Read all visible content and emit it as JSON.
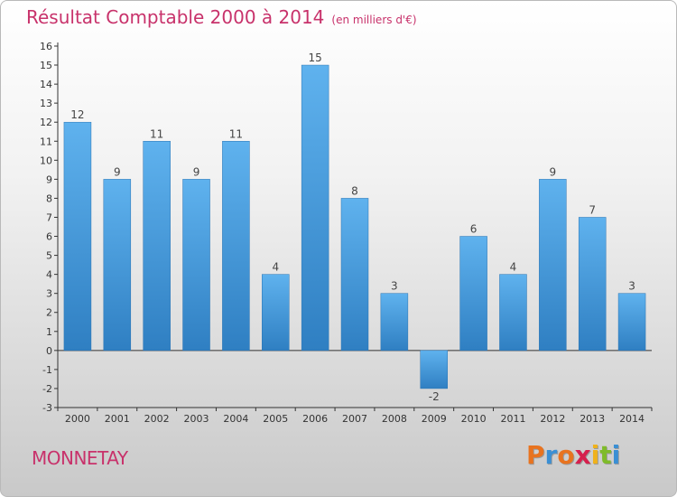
{
  "chart_data": {
    "type": "bar",
    "title": "Résultat Comptable 2000 à 2014",
    "subtitle": "(en milliers d'€)",
    "categories": [
      "2000",
      "2001",
      "2002",
      "2003",
      "2004",
      "2005",
      "2006",
      "2007",
      "2008",
      "2009",
      "2010",
      "2011",
      "2012",
      "2013",
      "2014"
    ],
    "values": [
      12,
      9,
      11,
      9,
      11,
      4,
      15,
      8,
      3,
      -2,
      6,
      4,
      9,
      7,
      3
    ],
    "ylim": [
      -3,
      16
    ],
    "yticks": [
      -3,
      -2,
      -1,
      0,
      1,
      2,
      3,
      4,
      5,
      6,
      7,
      8,
      9,
      10,
      11,
      12,
      13,
      14,
      15,
      16
    ],
    "grid": false,
    "bar_color": "#3a8fd4",
    "xlabel": "",
    "ylabel": ""
  },
  "commune": "MONNETAY",
  "logo": {
    "letters": [
      "P",
      "r",
      "o",
      "x",
      "i",
      "t",
      "i"
    ],
    "colors": [
      "#e8731f",
      "#3a8fd4",
      "#e8731f",
      "#d6204d",
      "#f0b21c",
      "#7fbb2a",
      "#3a8fd4"
    ]
  },
  "colors": {
    "title": "#c8326b",
    "axis": "#333333"
  }
}
